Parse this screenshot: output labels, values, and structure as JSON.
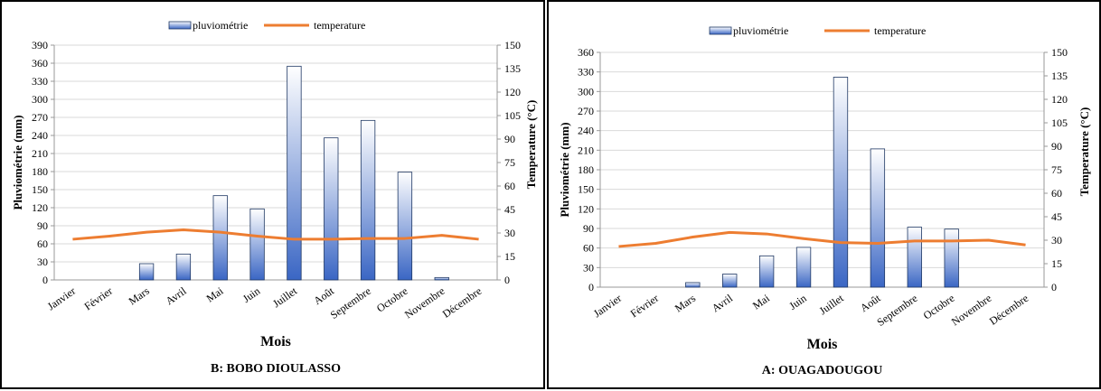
{
  "chart_data": [
    {
      "type": "bar",
      "title": "B: BOBO DIOULASSO",
      "xlabel": "Mois",
      "ylabel": "Pluviométrie   (mm)",
      "y2label": "Temperature   (°C)",
      "categories": [
        "Janvier",
        "Février",
        "Mars",
        "Avril",
        "Mai",
        "Juin",
        "Juillet",
        "Août",
        "Septembre",
        "Octobre",
        "Novembre",
        "Décembre"
      ],
      "ylim": [
        0,
        390
      ],
      "y_ticks": [
        0,
        30,
        60,
        90,
        120,
        150,
        180,
        210,
        240,
        270,
        300,
        330,
        360,
        390
      ],
      "y2lim": [
        0,
        150
      ],
      "y2_ticks": [
        0,
        15,
        30,
        45,
        60,
        75,
        90,
        105,
        120,
        135,
        150
      ],
      "series": [
        {
          "name": "pluviométrie",
          "type": "bar",
          "axis": "left",
          "values": [
            0,
            0,
            27,
            43,
            140,
            118,
            355,
            236,
            265,
            179,
            4,
            0
          ]
        },
        {
          "name": "temperature",
          "type": "line",
          "axis": "right",
          "values": [
            26,
            28,
            30.5,
            32,
            30.5,
            28,
            26,
            26,
            26.5,
            26.5,
            28.5,
            26
          ]
        }
      ],
      "legend": "top-center",
      "grid": true,
      "colors": {
        "bar_top": "#ffffff",
        "bar_bottom": "#3a66c4",
        "line": "#ed7d31",
        "grid": "#d9d9d9"
      }
    },
    {
      "type": "bar",
      "title": "A: OUAGADOUGOU",
      "xlabel": "Mois",
      "ylabel": "Pluviométrie   (mm)",
      "y2label": "Temperature   (°C)",
      "categories": [
        "Janvier",
        "Février",
        "Mars",
        "Avril",
        "Mai",
        "Juin",
        "Juillet",
        "Août",
        "Septembre",
        "Octobre",
        "Novembre",
        "Décembre"
      ],
      "ylim": [
        0,
        360
      ],
      "y_ticks": [
        0,
        30,
        60,
        90,
        120,
        150,
        180,
        210,
        240,
        270,
        300,
        330,
        360
      ],
      "y2lim": [
        0,
        150
      ],
      "y2_ticks": [
        0,
        15,
        30,
        45,
        60,
        75,
        90,
        105,
        120,
        135,
        150
      ],
      "series": [
        {
          "name": "pluviométrie",
          "type": "bar",
          "axis": "left",
          "values": [
            0,
            0,
            7,
            20,
            48,
            61,
            322,
            212,
            92,
            89,
            0,
            0
          ]
        },
        {
          "name": "temperature",
          "type": "line",
          "axis": "right",
          "values": [
            26,
            28,
            32,
            35,
            34,
            31,
            28.5,
            28,
            29.5,
            29.5,
            30,
            27
          ]
        }
      ],
      "legend": "top-center",
      "grid": true,
      "colors": {
        "bar_top": "#ffffff",
        "bar_bottom": "#3a66c4",
        "line": "#ed7d31",
        "grid": "#d9d9d9"
      }
    }
  ]
}
